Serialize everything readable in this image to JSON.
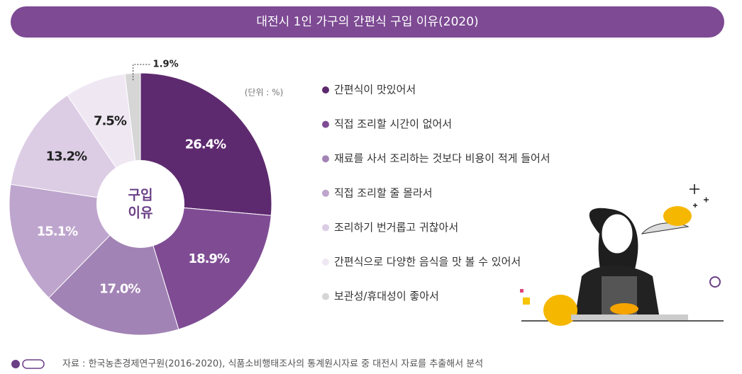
{
  "chart_data": {
    "type": "pie",
    "title": "대전시 1인 가구의 간편식 구입 이유(2020)",
    "unit": "(단위 : %)",
    "center_label": [
      "구입",
      "이유"
    ],
    "categories": [
      "간편식이 맛있어서",
      "직접 조리할 시간이 없어서",
      "재료를 사서 조리하는 것보다 비용이 적게 들어서",
      "직접 조리할 줄 몰라서",
      "조리하기 번거롭고 귀찮아서",
      "간편식으로 다양한 음식을 맛 볼 수 있어서",
      "보관성/휴대성이 좋아서"
    ],
    "values": [
      26.4,
      18.9,
      17.0,
      15.1,
      13.2,
      7.5,
      1.9
    ],
    "value_labels": [
      "26.4%",
      "18.9%",
      "17.0%",
      "15.1%",
      "13.2%",
      "7.5%",
      "1.9%"
    ],
    "colors": [
      "#5e2a6f",
      "#7f4c94",
      "#a283b5",
      "#bea5cd",
      "#dccde5",
      "#efe8f3",
      "#d6d6d6"
    ],
    "source": "자료 : 한국농촌경제연구원(2016-2020), 식품소비행태조사의 통계원시자료 중 대전시 자료를 추출해서 분석"
  }
}
